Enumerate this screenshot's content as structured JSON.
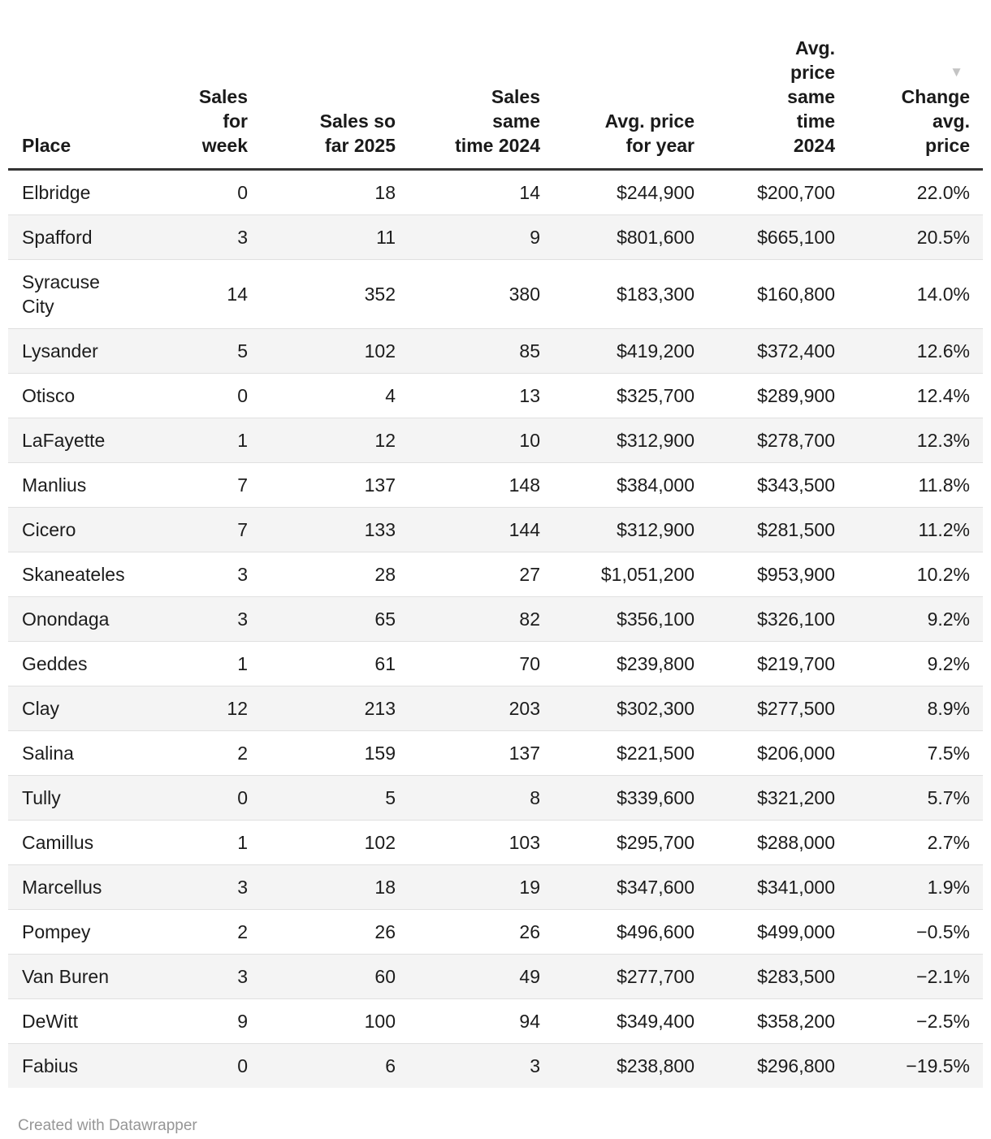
{
  "chart_data": {
    "type": "table",
    "columns": [
      {
        "key": "place",
        "label": "Place",
        "align": "left"
      },
      {
        "key": "sales_for_week",
        "label": "Sales\nfor\nweek",
        "align": "right"
      },
      {
        "key": "sales_so_far_2025",
        "label": "Sales so\nfar 2025",
        "align": "right"
      },
      {
        "key": "sales_same_time_2024",
        "label": "Sales\nsame\ntime 2024",
        "align": "right"
      },
      {
        "key": "avg_price_for_year",
        "label": "Avg. price\nfor year",
        "align": "right"
      },
      {
        "key": "avg_price_same_time_2024",
        "label": "Avg.\nprice\nsame\ntime\n2024",
        "align": "right"
      },
      {
        "key": "change_avg_price",
        "label": "Change\navg.\nprice",
        "align": "right",
        "sorted": "desc"
      }
    ],
    "rows": [
      [
        "Elbridge",
        "0",
        "18",
        "14",
        "$244,900",
        "$200,700",
        "22.0%"
      ],
      [
        "Spafford",
        "3",
        "11",
        "9",
        "$801,600",
        "$665,100",
        "20.5%"
      ],
      [
        "Syracuse City",
        "14",
        "352",
        "380",
        "$183,300",
        "$160,800",
        "14.0%"
      ],
      [
        "Lysander",
        "5",
        "102",
        "85",
        "$419,200",
        "$372,400",
        "12.6%"
      ],
      [
        "Otisco",
        "0",
        "4",
        "13",
        "$325,700",
        "$289,900",
        "12.4%"
      ],
      [
        "LaFayette",
        "1",
        "12",
        "10",
        "$312,900",
        "$278,700",
        "12.3%"
      ],
      [
        "Manlius",
        "7",
        "137",
        "148",
        "$384,000",
        "$343,500",
        "11.8%"
      ],
      [
        "Cicero",
        "7",
        "133",
        "144",
        "$312,900",
        "$281,500",
        "11.2%"
      ],
      [
        "Skaneateles",
        "3",
        "28",
        "27",
        "$1,051,200",
        "$953,900",
        "10.2%"
      ],
      [
        "Onondaga",
        "3",
        "65",
        "82",
        "$356,100",
        "$326,100",
        "9.2%"
      ],
      [
        "Geddes",
        "1",
        "61",
        "70",
        "$239,800",
        "$219,700",
        "9.2%"
      ],
      [
        "Clay",
        "12",
        "213",
        "203",
        "$302,300",
        "$277,500",
        "8.9%"
      ],
      [
        "Salina",
        "2",
        "159",
        "137",
        "$221,500",
        "$206,000",
        "7.5%"
      ],
      [
        "Tully",
        "0",
        "5",
        "8",
        "$339,600",
        "$321,200",
        "5.7%"
      ],
      [
        "Camillus",
        "1",
        "102",
        "103",
        "$295,700",
        "$288,000",
        "2.7%"
      ],
      [
        "Marcellus",
        "3",
        "18",
        "19",
        "$347,600",
        "$341,000",
        "1.9%"
      ],
      [
        "Pompey",
        "2",
        "26",
        "26",
        "$496,600",
        "$499,000",
        "−0.5%"
      ],
      [
        "Van Buren",
        "3",
        "60",
        "49",
        "$277,700",
        "$283,500",
        "−2.1%"
      ],
      [
        "DeWitt",
        "9",
        "100",
        "94",
        "$349,400",
        "$358,200",
        "−2.5%"
      ],
      [
        "Fabius",
        "0",
        "6",
        "3",
        "$238,800",
        "$296,800",
        "−19.5%"
      ]
    ],
    "layout": {
      "zebra_stripes": true,
      "sorted_column": "change_avg_price",
      "sort_direction": "desc"
    }
  },
  "icons": {
    "sort_desc": "▼"
  },
  "colors": {
    "header_rule": "#333333",
    "row_separator": "#e0e0e0",
    "stripe": "#f4f4f4",
    "text": "#1c1c1c",
    "sort_arrow": "#c4c4c4",
    "footer_text": "#969696"
  },
  "footer": {
    "credit": "Created with Datawrapper"
  }
}
